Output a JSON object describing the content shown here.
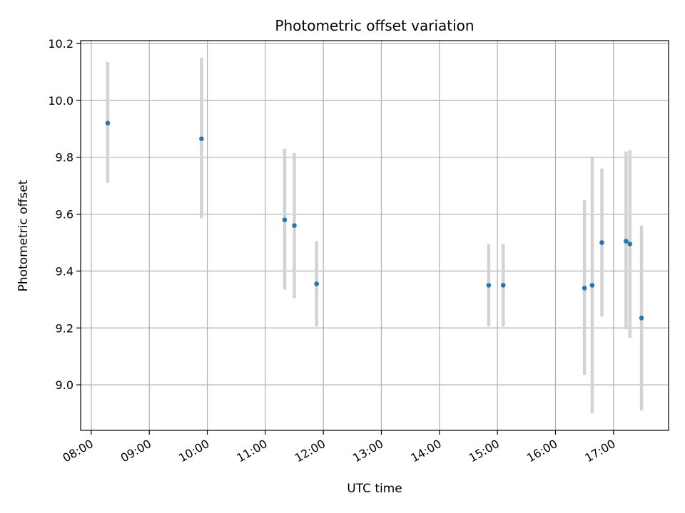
{
  "chart_data": {
    "type": "scatter",
    "title": "Photometric offset variation",
    "xlabel": "UTC time",
    "ylabel": "Photometric offset",
    "x_ticks": [
      "08:00",
      "09:00",
      "10:00",
      "11:00",
      "12:00",
      "13:00",
      "14:00",
      "15:00",
      "16:00",
      "17:00"
    ],
    "xlim": [
      "07:49",
      "17:57"
    ],
    "y_ticks": [
      "9.0",
      "9.2",
      "9.4",
      "9.6",
      "9.8",
      "10.0",
      "10.2"
    ],
    "ylim": [
      8.84,
      10.21
    ],
    "grid": true,
    "colors": {
      "point": "#1f77b4",
      "errorbar": "#d3d3d3",
      "grid": "#b0b0b0"
    },
    "points": [
      {
        "x": "08:17",
        "y": 9.92,
        "low": 9.71,
        "high": 10.135
      },
      {
        "x": "09:54",
        "y": 9.865,
        "low": 9.585,
        "high": 10.15
      },
      {
        "x": "11:20",
        "y": 9.58,
        "low": 9.335,
        "high": 9.83
      },
      {
        "x": "11:30",
        "y": 9.56,
        "low": 9.305,
        "high": 9.815
      },
      {
        "x": "11:53",
        "y": 9.355,
        "low": 9.205,
        "high": 9.505
      },
      {
        "x": "14:51",
        "y": 9.35,
        "low": 9.205,
        "high": 9.495
      },
      {
        "x": "15:06",
        "y": 9.35,
        "low": 9.205,
        "high": 9.495
      },
      {
        "x": "16:30",
        "y": 9.34,
        "low": 9.035,
        "high": 9.65
      },
      {
        "x": "16:38",
        "y": 9.35,
        "low": 8.9,
        "high": 9.8
      },
      {
        "x": "16:48",
        "y": 9.5,
        "low": 9.24,
        "high": 9.76
      },
      {
        "x": "17:13",
        "y": 9.505,
        "low": 9.195,
        "high": 9.82
      },
      {
        "x": "17:17",
        "y": 9.495,
        "low": 9.165,
        "high": 9.825
      },
      {
        "x": "17:29",
        "y": 9.235,
        "low": 8.91,
        "high": 9.56
      }
    ]
  }
}
